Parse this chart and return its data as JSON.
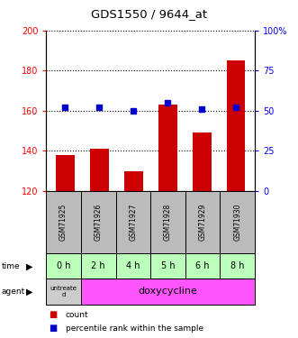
{
  "title": "GDS1550 / 9644_at",
  "samples": [
    "GSM71925",
    "GSM71926",
    "GSM71927",
    "GSM71928",
    "GSM71929",
    "GSM71930"
  ],
  "bar_values": [
    138,
    141,
    130,
    163,
    149,
    185
  ],
  "percentile_values": [
    52,
    52,
    50,
    55,
    51,
    52
  ],
  "bar_bottom": 120,
  "ylim_left": [
    120,
    200
  ],
  "ylim_right": [
    0,
    100
  ],
  "yticks_left": [
    120,
    140,
    160,
    180,
    200
  ],
  "yticks_right": [
    0,
    25,
    50,
    75,
    100
  ],
  "ytick_labels_right": [
    "0",
    "25",
    "50",
    "75",
    "100%"
  ],
  "bar_color": "#cc0000",
  "marker_color": "#0000cc",
  "time_labels": [
    "0 h",
    "2 h",
    "4 h",
    "5 h",
    "6 h",
    "8 h"
  ],
  "agent_label_first": "untreate\nd",
  "agent_label_rest": "doxycycline",
  "time_bg_color": "#bbffbb",
  "agent_first_color": "#cccccc",
  "agent_rest_color": "#ff55ff",
  "sample_bg_color": "#bbbbbb",
  "legend_bar_label": "count",
  "legend_marker_label": "percentile rank within the sample",
  "bar_width": 0.55
}
